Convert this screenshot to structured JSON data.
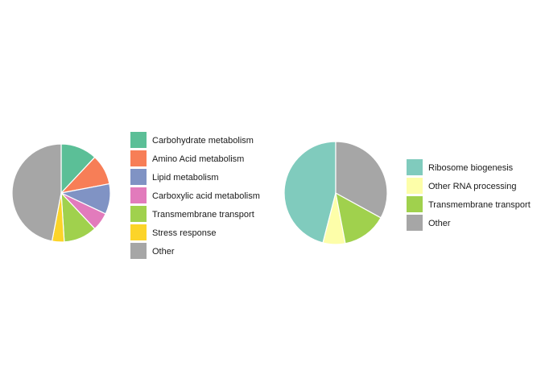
{
  "chart_data": [
    {
      "type": "pie",
      "title": "",
      "categories": [
        "Carbohydrate metabolism",
        "Amino Acid metabolism",
        "Lipid metabolism",
        "Carboxylic acid metabolism",
        "Transmembrane transport",
        "Stress response",
        "Other"
      ],
      "values": [
        12,
        10,
        10,
        6,
        11,
        4,
        47
      ],
      "colors": [
        "#5bbf97",
        "#f77e57",
        "#8093c4",
        "#e27bbc",
        "#a0d14d",
        "#fcd429",
        "#a6a6a6"
      ],
      "legend_position": "right",
      "start_angle_deg": 0,
      "direction": "clockwise"
    },
    {
      "type": "pie",
      "title": "",
      "categories": [
        "Ribosome biogenesis",
        "Other RNA processing",
        "Transmembrane transport",
        "Other"
      ],
      "values": [
        46,
        7,
        14,
        33
      ],
      "colors": [
        "#80cbbd",
        "#fdfea9",
        "#a0d14d",
        "#a6a6a6"
      ],
      "legend_position": "right",
      "start_angle_deg": 0,
      "direction": "counterclockwise"
    }
  ]
}
